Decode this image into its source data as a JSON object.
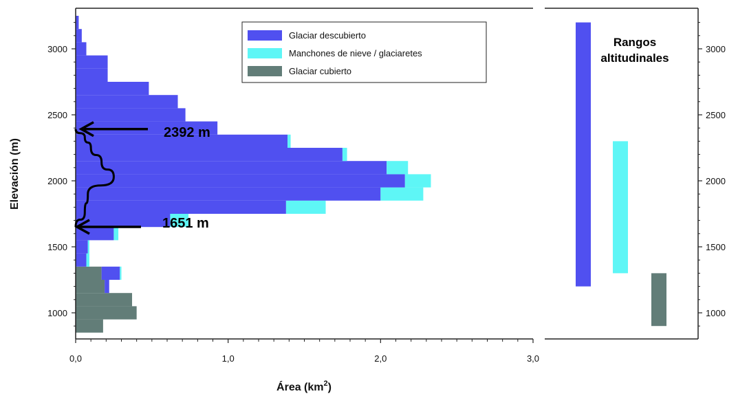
{
  "chart_data": {
    "type": "bar",
    "orientation": "horizontal",
    "xlabel": "Área (km",
    "xlabel_sup": "2",
    "xlabel_close": ")",
    "ylabel": "Elevación (m)",
    "xlim": [
      0,
      3
    ],
    "ylim": [
      850,
      3300
    ],
    "x_ticks": [
      0,
      1,
      2,
      3
    ],
    "x_tick_labels": [
      "0,0",
      "1,0",
      "2,0",
      "3,0"
    ],
    "y_ticks": [
      1000,
      1500,
      2000,
      2500,
      3000
    ],
    "y_tick_labels": [
      "1000",
      "1500",
      "2000",
      "2500",
      "3000"
    ],
    "bin_edges": [
      850,
      950,
      1050,
      1150,
      1250,
      1350,
      1450,
      1550,
      1650,
      1750,
      1850,
      1950,
      2050,
      2150,
      2250,
      2350,
      2450,
      2550,
      2650,
      2750,
      2850,
      2950,
      3050,
      3150,
      3250
    ],
    "series": [
      {
        "name": "Glaciar cubierto",
        "color": "#627d78",
        "values": [
          0.18,
          0.4,
          0.37,
          0.19,
          0.17,
          0,
          0,
          0,
          0,
          0,
          0,
          0,
          0,
          0,
          0,
          0,
          0,
          0,
          0,
          0,
          0,
          0,
          0,
          0
        ]
      },
      {
        "name": "Glaciar descubierto",
        "color": "#5050f0",
        "values": [
          0,
          0,
          0,
          0.03,
          0.12,
          0.07,
          0.08,
          0.25,
          0.62,
          1.38,
          2.0,
          2.16,
          2.04,
          1.75,
          1.39,
          0.93,
          0.72,
          0.67,
          0.48,
          0.21,
          0.21,
          0.07,
          0.04,
          0.02
        ]
      },
      {
        "name": "Manchones de nieve / glaciaretes",
        "color": "#5ef6f6",
        "values": [
          0,
          0,
          0,
          0,
          0.01,
          0.02,
          0.01,
          0.03,
          0.12,
          0.26,
          0.28,
          0.17,
          0.14,
          0.03,
          0.02,
          0,
          0,
          0,
          0,
          0,
          0,
          0,
          0,
          0
        ]
      }
    ],
    "legend_position": "top-right",
    "annotations": [
      {
        "text": "2392 m",
        "elevation": 2392
      },
      {
        "text": "1651 m",
        "elevation": 1651
      }
    ],
    "hypsometric_curve": [
      [
        0.0,
        1651
      ],
      [
        0.06,
        1760
      ],
      [
        0.08,
        1900
      ],
      [
        0.25,
        2030
      ],
      [
        0.17,
        2140
      ],
      [
        0.1,
        2250
      ],
      [
        0.06,
        2330
      ],
      [
        0.0,
        2392
      ]
    ],
    "ranges_panel": {
      "title_line1": "Rangos",
      "title_line2": "altitudinales",
      "bars": [
        {
          "series": "Glaciar descubierto",
          "color": "#5050f0",
          "min": 1200,
          "max": 3200
        },
        {
          "series": "Manchones de nieve / glaciaretes",
          "color": "#5ef6f6",
          "min": 1300,
          "max": 2300
        },
        {
          "series": "Glaciar cubierto",
          "color": "#627d78",
          "min": 900,
          "max": 1300
        }
      ]
    },
    "grid": false
  }
}
